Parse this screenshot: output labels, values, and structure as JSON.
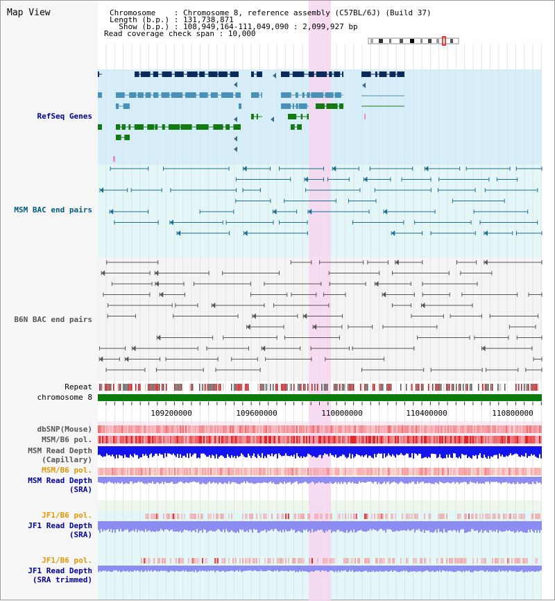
{
  "title": "Map View",
  "info": {
    "line1": "Chromosome    : Chromosome 8, reference assembly (C57BL/6J) (Build 37)",
    "line2": "Length (b.p.) : 131,738,871",
    "line3": "  Show (b.p.) : 108,949,164-111,049,090 : 2,099,927 bp",
    "line4": "Read coverage check span : 10,000"
  },
  "tracks": {
    "refseq": "RefSeq Genes",
    "msm_bac": "MSM BAC end pairs",
    "b6n_bac": "B6N BAC end pairs",
    "repeat": "Repeat",
    "chromosome": "chromosome 8",
    "dbsnp": "dbSNP(Mouse)",
    "msm_pol1": "MSM/B6 pol.",
    "msm_depth_cap_1": "MSM Read Depth",
    "msm_depth_cap_2": "(Capillary)",
    "msm_pol2": "MSM/B6 pol.",
    "msm_depth_sra_1": "MSM Read Depth",
    "msm_depth_sra_2": "(SRA)",
    "jf1_pol1": "JF1/B6 pol.",
    "jf1_depth_1": "JF1 Read Depth",
    "jf1_depth_2": "(SRA)",
    "jf1_pol2": "JF1/B6 pol.",
    "jf1_trim_1": "JF1 Read Depth",
    "jf1_trim_2": "(SRA trimmed)"
  },
  "axis_ticks": [
    "109200000",
    "109600000",
    "110000000",
    "110400000",
    "110800000"
  ],
  "colors": {
    "refseq_bg": "#d6eef9",
    "msm_bg": "#e3f6f8",
    "gene_navy": "#0b2a5c",
    "gene_blue": "#4a91b8",
    "gene_green": "#137a13",
    "bac_msm": "#1e6f8f",
    "bac_b6n": "#555555",
    "highlight": "#f6d6f0",
    "chrom_green": "#0a7a0a",
    "depth_dark": "#1414ee",
    "depth_light": "#8c8cf2",
    "pol_red": "#e21b1b",
    "label_navy": "#000099",
    "label_teal": "#005a7a",
    "label_orange": "#e39700",
    "label_gray": "#555555"
  }
}
